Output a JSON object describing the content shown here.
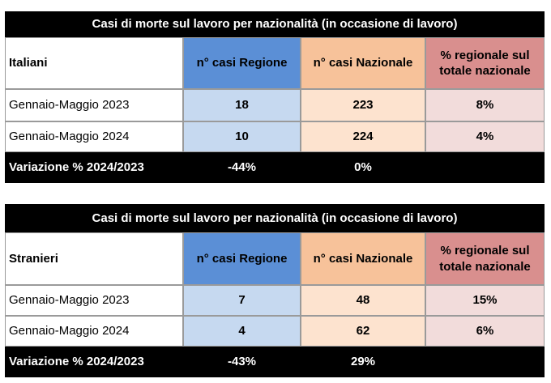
{
  "tables": [
    {
      "title": "Casi di morte sul lavoro per nazionalità (in occasione di lavoro)",
      "header": [
        "Italiani",
        "n° casi Regione",
        "n° casi Nazionale",
        "% regionale sul totale nazionale"
      ],
      "rows": [
        [
          "Gennaio-Maggio 2023",
          "18",
          "223",
          "8%"
        ],
        [
          "Gennaio-Maggio 2024",
          "10",
          "224",
          "4%"
        ]
      ],
      "footer": {
        "label": "Variazione % 2024/2023",
        "values": [
          "-44%",
          "0%"
        ]
      }
    },
    {
      "title": "Casi di morte sul lavoro per nazionalità (in occasione di lavoro)",
      "header": [
        "Stranieri",
        "n° casi Regione",
        "n° casi Nazionale",
        "% regionale sul totale nazionale"
      ],
      "rows": [
        [
          "Gennaio-Maggio 2023",
          "7",
          "48",
          "15%"
        ],
        [
          "Gennaio-Maggio 2024",
          "4",
          "62",
          "6%"
        ]
      ],
      "footer": {
        "label": "Variazione % 2024/2023",
        "values": [
          "-43%",
          "29%"
        ]
      }
    }
  ]
}
